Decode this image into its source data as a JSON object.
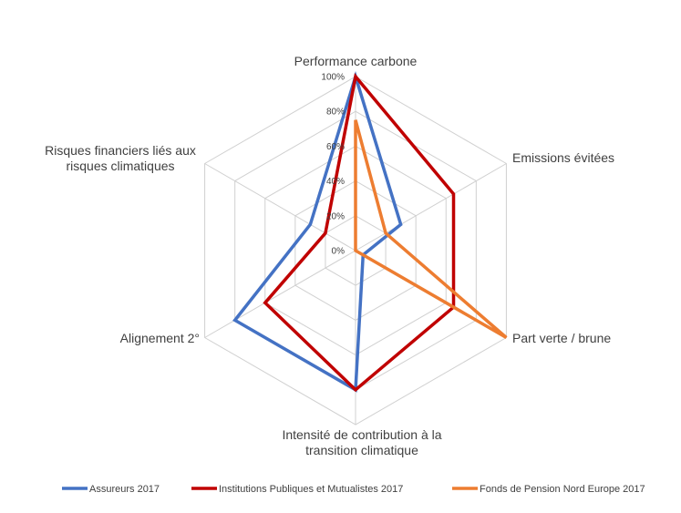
{
  "chart_data": {
    "type": "radar",
    "axes": [
      [
        "Performance carbone"
      ],
      [
        "Emissions évitées"
      ],
      [
        "Part verte / brune"
      ],
      [
        "Intensité de contribution à la",
        "transition climatique"
      ],
      [
        "Alignement 2°"
      ],
      [
        "Risques financiers liés aux",
        "risques climatiques"
      ]
    ],
    "rlim": [
      0,
      100
    ],
    "ticks": [
      "0%",
      "20%",
      "40%",
      "60%",
      "80%",
      "100%"
    ],
    "grid": true,
    "legend_position": "bottom",
    "series": [
      {
        "name": "Assureurs 2017",
        "color": "#4472C4",
        "values": [
          100,
          30,
          5,
          80,
          80,
          30
        ]
      },
      {
        "name": "Institutions Publiques et Mutualistes 2017",
        "color": "#C00000",
        "values": [
          100,
          65,
          65,
          80,
          60,
          20
        ]
      },
      {
        "name": "Fonds de Pension Nord Europe 2017",
        "color": "#ED7D31",
        "values": [
          75,
          20,
          100,
          0,
          0,
          0
        ]
      }
    ]
  }
}
